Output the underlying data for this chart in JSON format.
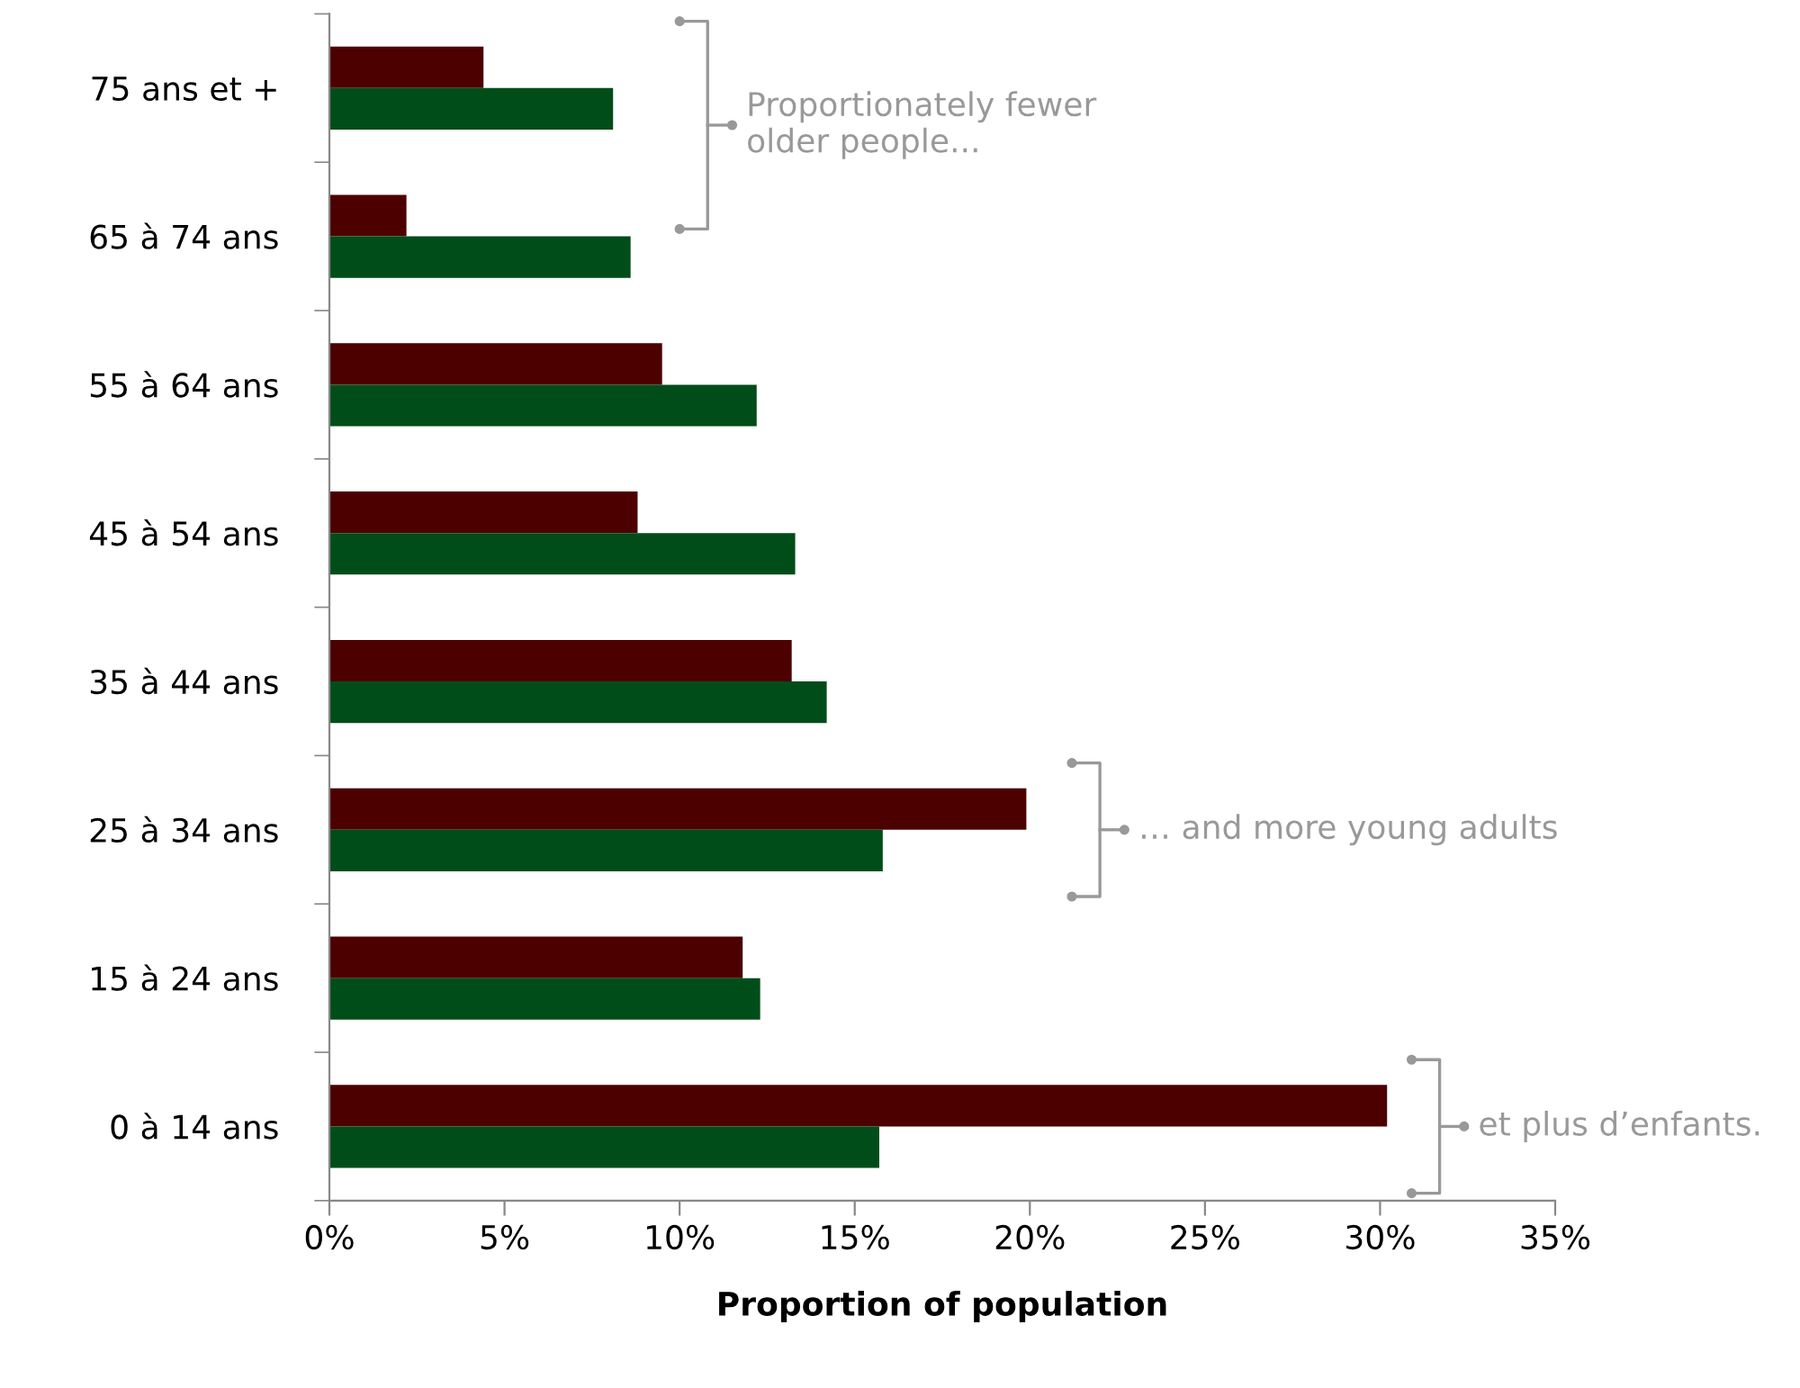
{
  "chart_data": {
    "type": "bar",
    "orientation": "horizontal",
    "xlabel": "Proportion of population",
    "categories": [
      "75 ans et +",
      "65 à 74 ans",
      "55 à 64 ans",
      "45 à 54 ans",
      "35 à 44 ans",
      "25 à 34 ans",
      "15 à 24 ans",
      "0 à 14 ans"
    ],
    "series": [
      {
        "color": "#4d0000",
        "values": [
          4.4,
          2.2,
          9.5,
          8.8,
          13.2,
          19.9,
          11.8,
          30.2
        ]
      },
      {
        "color": "#004d1a",
        "values": [
          8.1,
          8.6,
          12.2,
          13.3,
          14.2,
          15.8,
          12.3,
          15.7
        ]
      }
    ],
    "xlim": [
      0,
      35
    ],
    "xticks": [
      {
        "value": 0,
        "label": "0%"
      },
      {
        "value": 5,
        "label": "5%"
      },
      {
        "value": 10,
        "label": "10%"
      },
      {
        "value": 15,
        "label": "15%"
      },
      {
        "value": 20,
        "label": "20%"
      },
      {
        "value": 25,
        "label": "25%"
      },
      {
        "value": 30,
        "label": "30%"
      },
      {
        "value": 35,
        "label": "35%"
      }
    ],
    "annotations": [
      "Proportionately fewer\nolder people...",
      "… and more young adults",
      "et plus d’enfants."
    ],
    "grid": false,
    "legend": false
  }
}
